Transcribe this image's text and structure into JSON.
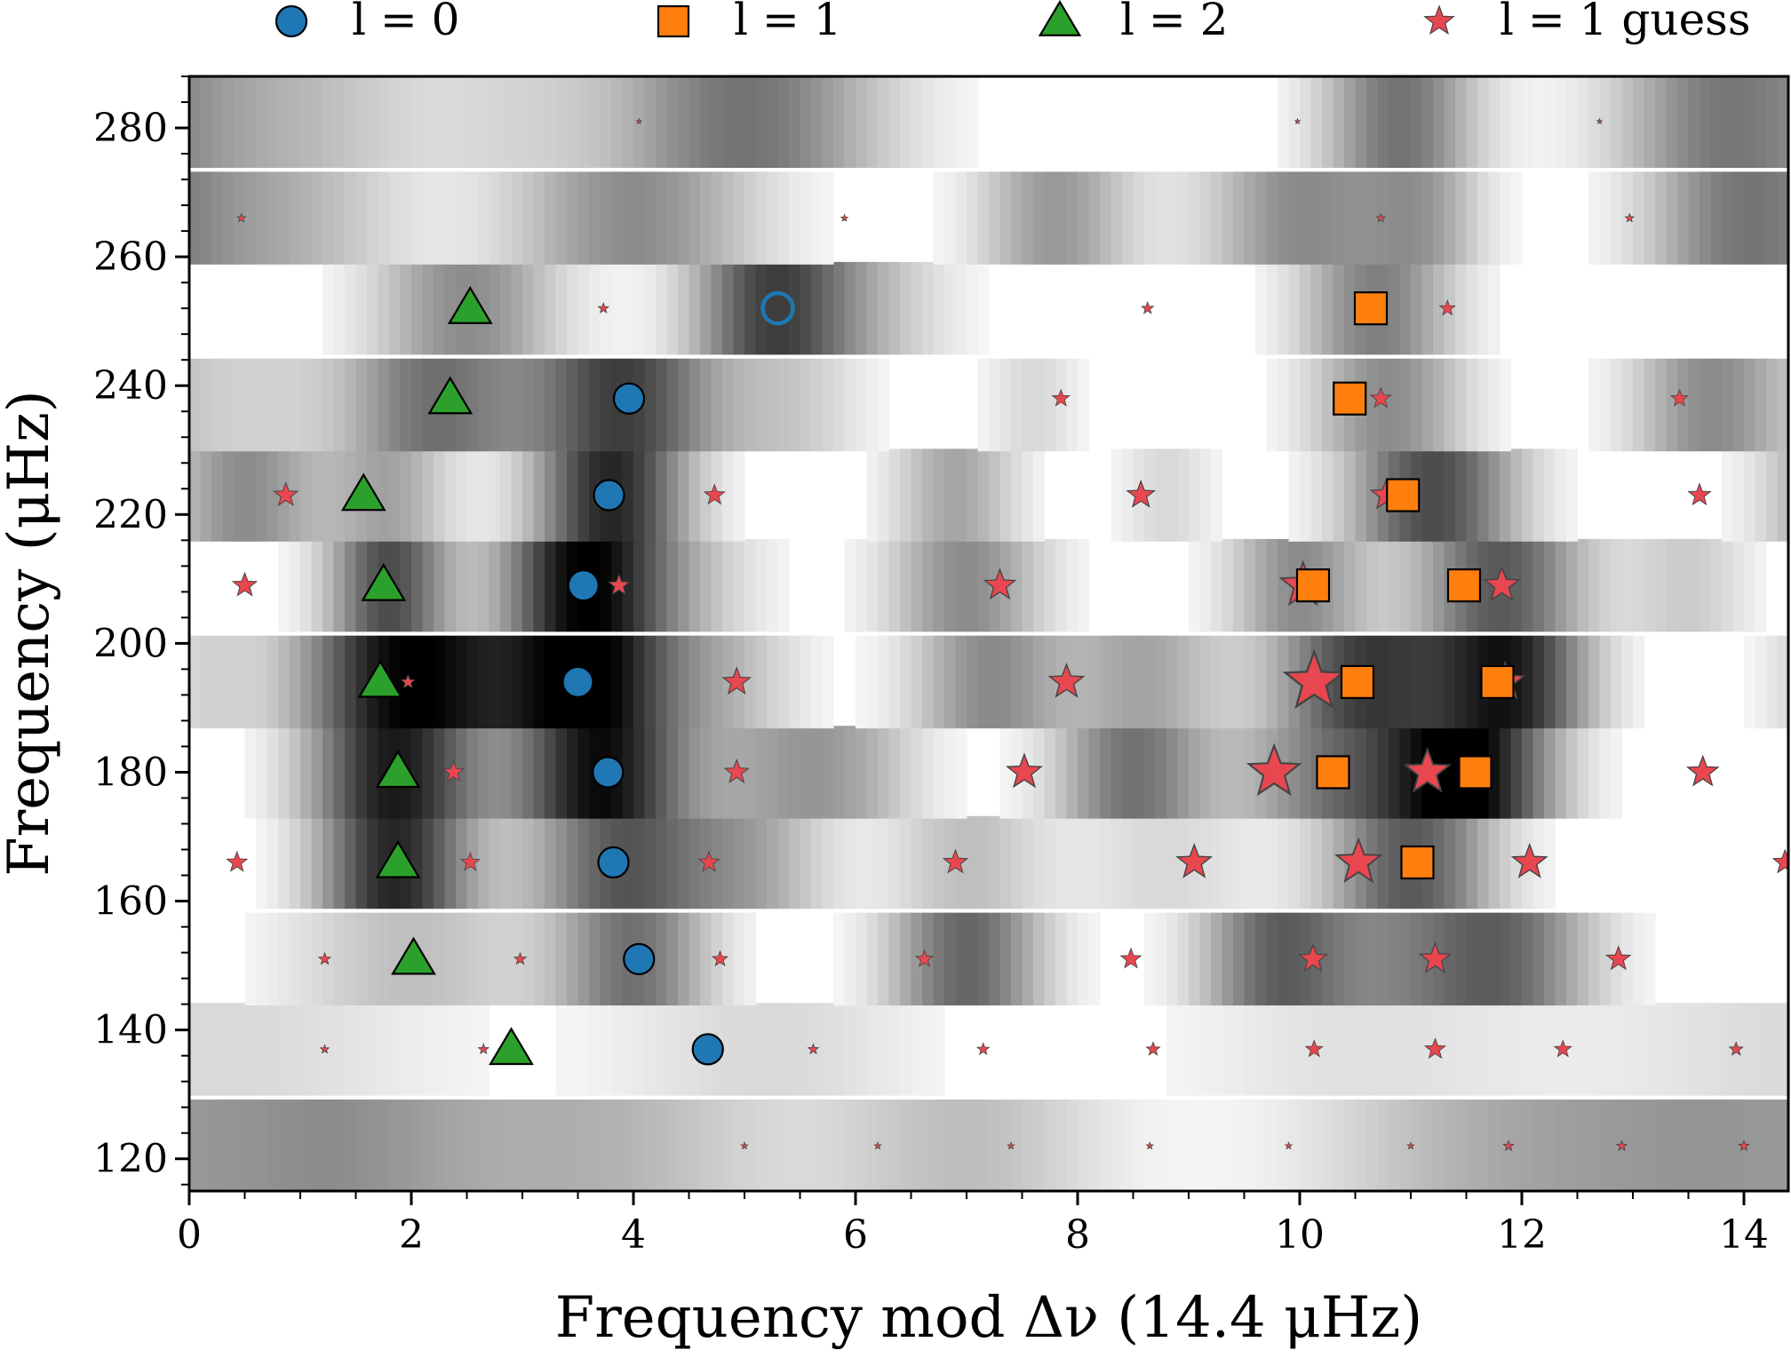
{
  "chart_data": {
    "type": "scatter",
    "title": "",
    "xlabel": "Frequency mod Δν (14.4 μHz)",
    "ylabel": "Frequency (μHz)",
    "xlim": [
      0,
      14.4
    ],
    "ylim": [
      115,
      288
    ],
    "x_ticks": [
      0,
      2,
      4,
      6,
      8,
      10,
      12,
      14
    ],
    "y_ticks": [
      120,
      140,
      160,
      180,
      200,
      220,
      240,
      260,
      280
    ],
    "x_tick_labels": [
      "0",
      "2",
      "4",
      "6",
      "8",
      "10",
      "12",
      "14"
    ],
    "y_tick_labels": [
      "120",
      "140",
      "160",
      "180",
      "200",
      "220",
      "240",
      "260",
      "280"
    ],
    "grid": false,
    "legend_position": "top",
    "legend": [
      {
        "label": "l = 0",
        "marker": "circle",
        "color": "#1f77b4"
      },
      {
        "label": "l = 1",
        "marker": "square",
        "color": "#ff7f0e"
      },
      {
        "label": "l = 2",
        "marker": "triangle",
        "color": "#2ca02c"
      },
      {
        "label": "l = 1 guess",
        "marker": "star",
        "color": "#e8474f"
      }
    ],
    "background_heatmap": {
      "colormap": "grayscale",
      "rows": [
        {
          "y": 122,
          "peaks": [
            [
              1.3,
              0.35,
              0.9
            ],
            [
              3.6,
              0.3,
              1.2
            ],
            [
              7.0,
              0.25,
              0.9
            ],
            [
              11.8,
              0.3,
              1.2
            ],
            [
              13.8,
              0.3,
              1.0
            ]
          ]
        },
        {
          "y": 137,
          "peaks": [
            [
              0.3,
              0.15,
              1.4
            ],
            [
              5.2,
              0.15,
              1.0
            ],
            [
              10.6,
              0.12,
              1.2
            ]
          ]
        },
        {
          "y": 151,
          "peaks": [
            [
              2.0,
              0.25,
              0.8
            ],
            [
              4.0,
              0.55,
              0.5
            ],
            [
              7.0,
              0.6,
              0.5
            ],
            [
              9.8,
              0.6,
              0.5
            ],
            [
              11.8,
              0.6,
              0.6
            ],
            [
              10.8,
              0.25,
              0.5
            ]
          ]
        },
        {
          "y": 166,
          "peaks": [
            [
              1.85,
              0.85,
              0.5
            ],
            [
              3.9,
              0.65,
              0.6
            ],
            [
              5.1,
              0.3,
              0.5
            ],
            [
              7.0,
              0.25,
              0.5
            ],
            [
              11.0,
              0.65,
              0.55
            ],
            [
              8.8,
              0.15,
              0.6
            ]
          ]
        },
        {
          "y": 180,
          "peaks": [
            [
              1.85,
              0.9,
              0.55
            ],
            [
              3.7,
              0.95,
              0.55
            ],
            [
              5.3,
              0.3,
              0.6
            ],
            [
              8.5,
              0.55,
              0.5
            ],
            [
              10.3,
              0.5,
              0.6
            ],
            [
              11.5,
              1.0,
              0.55
            ],
            [
              6.0,
              0.2,
              0.5
            ]
          ]
        },
        {
          "y": 194,
          "peaks": [
            [
              2.0,
              1.0,
              0.7
            ],
            [
              3.6,
              1.0,
              0.55
            ],
            [
              4.8,
              0.25,
              0.5
            ],
            [
              7.2,
              0.45,
              0.5
            ],
            [
              8.6,
              0.35,
              0.5
            ],
            [
              10.6,
              0.75,
              0.6
            ],
            [
              11.9,
              0.85,
              0.5
            ],
            [
              0.15,
              0.15,
              0.3
            ]
          ]
        },
        {
          "y": 209,
          "peaks": [
            [
              1.8,
              0.7,
              0.4
            ],
            [
              3.5,
              0.85,
              0.5
            ],
            [
              4.2,
              0.3,
              0.6
            ],
            [
              7.0,
              0.45,
              0.5
            ],
            [
              10.0,
              0.45,
              0.45
            ],
            [
              11.8,
              0.65,
              0.55
            ],
            [
              13.5,
              0.2,
              0.4
            ]
          ]
        },
        {
          "y": 223,
          "peaks": [
            [
              0.5,
              0.45,
              0.5
            ],
            [
              1.8,
              0.35,
              0.4
            ],
            [
              3.8,
              0.85,
              0.5
            ],
            [
              6.9,
              0.35,
              0.4
            ],
            [
              8.8,
              0.15,
              0.3
            ],
            [
              11.2,
              0.7,
              0.55
            ]
          ]
        },
        {
          "y": 237,
          "peaks": [
            [
              2.2,
              0.55,
              0.6
            ],
            [
              3.9,
              0.75,
              0.6
            ],
            [
              5.4,
              0.2,
              0.5
            ],
            [
              7.6,
              0.15,
              0.3
            ],
            [
              10.8,
              0.45,
              0.5
            ],
            [
              13.7,
              0.45,
              0.5
            ],
            [
              0.6,
              0.15,
              0.5
            ]
          ]
        },
        {
          "y": 252,
          "peaks": [
            [
              2.5,
              0.45,
              0.6
            ],
            [
              5.2,
              0.65,
              0.5
            ],
            [
              6.0,
              0.25,
              0.6
            ],
            [
              10.7,
              0.5,
              0.5
            ]
          ]
        },
        {
          "y": 266,
          "peaks": [
            [
              0.8,
              0.3,
              0.8
            ],
            [
              4.0,
              0.45,
              0.8
            ],
            [
              7.8,
              0.4,
              0.5
            ],
            [
              10.0,
              0.45,
              0.6
            ],
            [
              11.1,
              0.35,
              0.4
            ],
            [
              13.9,
              0.45,
              0.6
            ]
          ]
        },
        {
          "y": 281,
          "peaks": [
            [
              1.0,
              0.25,
              0.8
            ],
            [
              5.0,
              0.55,
              0.9
            ],
            [
              10.9,
              0.55,
              0.5
            ],
            [
              13.8,
              0.5,
              0.7
            ],
            [
              2.9,
              0.12,
              0.6
            ]
          ]
        }
      ]
    },
    "series": [
      {
        "name": "l = 0",
        "marker": "circle",
        "color": "#1f77b4",
        "points": [
          [
            4.67,
            137
          ],
          [
            4.05,
            151
          ],
          [
            3.82,
            166
          ],
          [
            3.77,
            180
          ],
          [
            3.5,
            194
          ],
          [
            3.55,
            209
          ],
          [
            3.78,
            223
          ],
          [
            3.96,
            238
          ]
        ]
      },
      {
        "name": "l = 0 (open)",
        "marker": "open-circle",
        "color": "#1f77b4",
        "points": [
          [
            5.3,
            252
          ]
        ]
      },
      {
        "name": "l = 1",
        "marker": "square",
        "color": "#ff7f0e",
        "points": [
          [
            11.06,
            166
          ],
          [
            10.3,
            180
          ],
          [
            11.58,
            180
          ],
          [
            10.52,
            194
          ],
          [
            11.78,
            194
          ],
          [
            10.12,
            209
          ],
          [
            11.48,
            209
          ],
          [
            10.93,
            223
          ],
          [
            10.45,
            238
          ],
          [
            10.64,
            252
          ]
        ]
      },
      {
        "name": "l = 2",
        "marker": "triangle",
        "color": "#2ca02c",
        "points": [
          [
            2.9,
            137
          ],
          [
            2.02,
            151
          ],
          [
            1.88,
            166
          ],
          [
            1.88,
            180
          ],
          [
            1.72,
            194
          ],
          [
            1.75,
            209
          ],
          [
            1.57,
            223
          ],
          [
            2.35,
            238
          ],
          [
            2.53,
            252
          ]
        ]
      },
      {
        "name": "l = 1 guess",
        "marker": "star",
        "color": "#e8474f",
        "points": [
          [
            5.0,
            122,
            4
          ],
          [
            6.2,
            122,
            4
          ],
          [
            7.4,
            122,
            4
          ],
          [
            8.65,
            122,
            4
          ],
          [
            9.9,
            122,
            4
          ],
          [
            11.0,
            122,
            4
          ],
          [
            11.88,
            122,
            6
          ],
          [
            12.9,
            122,
            6
          ],
          [
            14.0,
            122,
            6
          ],
          [
            1.22,
            137,
            5
          ],
          [
            2.65,
            137,
            6
          ],
          [
            5.62,
            137,
            6
          ],
          [
            7.15,
            137,
            7
          ],
          [
            8.68,
            137,
            8
          ],
          [
            10.13,
            137,
            10
          ],
          [
            11.22,
            137,
            12
          ],
          [
            12.37,
            137,
            10
          ],
          [
            13.93,
            137,
            8
          ],
          [
            1.22,
            151,
            7
          ],
          [
            2.98,
            151,
            7
          ],
          [
            4.78,
            151,
            9
          ],
          [
            6.62,
            151,
            10
          ],
          [
            8.48,
            151,
            12
          ],
          [
            10.12,
            151,
            16
          ],
          [
            11.22,
            151,
            18
          ],
          [
            12.87,
            151,
            14
          ],
          [
            0.43,
            166,
            12
          ],
          [
            2.53,
            166,
            11
          ],
          [
            4.68,
            166,
            12
          ],
          [
            6.9,
            166,
            14
          ],
          [
            9.05,
            166,
            20
          ],
          [
            10.53,
            166,
            26
          ],
          [
            12.07,
            166,
            20
          ],
          [
            14.37,
            166,
            14
          ],
          [
            2.38,
            180,
            12
          ],
          [
            4.93,
            180,
            14
          ],
          [
            7.52,
            180,
            20
          ],
          [
            9.77,
            180,
            30
          ],
          [
            11.15,
            180,
            26
          ],
          [
            13.63,
            180,
            18
          ],
          [
            1.97,
            194,
            8
          ],
          [
            4.93,
            194,
            16
          ],
          [
            7.9,
            194,
            20
          ],
          [
            10.13,
            194,
            34
          ],
          [
            11.85,
            194,
            22
          ],
          [
            0.5,
            209,
            14
          ],
          [
            3.87,
            209,
            12
          ],
          [
            7.3,
            209,
            18
          ],
          [
            10.03,
            209,
            26
          ],
          [
            11.82,
            209,
            20
          ],
          [
            0.87,
            223,
            14
          ],
          [
            4.73,
            223,
            12
          ],
          [
            8.57,
            223,
            16
          ],
          [
            10.78,
            223,
            18
          ],
          [
            13.6,
            223,
            13
          ],
          [
            7.85,
            238,
            10
          ],
          [
            10.73,
            238,
            12
          ],
          [
            13.42,
            238,
            10
          ],
          [
            3.73,
            252,
            6
          ],
          [
            8.63,
            252,
            7
          ],
          [
            11.33,
            252,
            9
          ],
          [
            0.47,
            266,
            5
          ],
          [
            5.9,
            266,
            4
          ],
          [
            10.73,
            266,
            5
          ],
          [
            12.97,
            266,
            5
          ],
          [
            4.05,
            281,
            3
          ],
          [
            9.98,
            281,
            3
          ],
          [
            12.7,
            281,
            3
          ]
        ]
      }
    ]
  }
}
